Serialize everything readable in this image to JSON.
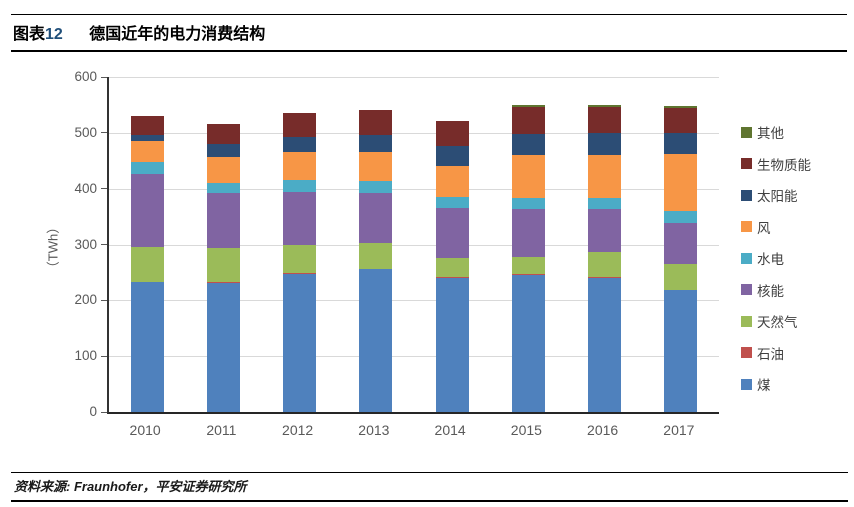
{
  "header": {
    "label_prefix": "图表",
    "label_number": "12",
    "title": "德国近年的电力消费结构"
  },
  "footer": {
    "source": "资料来源: Fraunhofer，平安证券研究所"
  },
  "chart_data": {
    "type": "bar",
    "stacked": true,
    "title": "德国近年的电力消费结构",
    "unit": "TWh",
    "ylabel": "（TWh）",
    "xlabel": "",
    "ylim": [
      0,
      600
    ],
    "yticks": [
      0,
      100,
      200,
      300,
      400,
      500,
      600
    ],
    "grid": true,
    "legend_position": "right",
    "legend_order": "reverse-of-stacking",
    "categories": [
      "2010",
      "2011",
      "2012",
      "2013",
      "2014",
      "2015",
      "2016",
      "2017"
    ],
    "series": [
      {
        "key": "coal",
        "name": "煤",
        "color": "#4F81BD",
        "values": [
          232,
          231,
          248,
          256,
          240,
          246,
          240,
          218
        ]
      },
      {
        "key": "oil",
        "name": "石油",
        "color": "#C0504D",
        "values": [
          1,
          1,
          1,
          1,
          1,
          1,
          1,
          1
        ]
      },
      {
        "key": "natural-gas",
        "name": "天然气",
        "color": "#9BBB59",
        "values": [
          63,
          62,
          50,
          45,
          34,
          30,
          45,
          47
        ]
      },
      {
        "key": "nuclear",
        "name": "核能",
        "color": "#8064A2",
        "values": [
          131,
          99,
          95,
          90,
          90,
          86,
          77,
          73
        ]
      },
      {
        "key": "hydro",
        "name": "水电",
        "color": "#4BACC6",
        "values": [
          21,
          18,
          21,
          21,
          20,
          21,
          21,
          21
        ]
      },
      {
        "key": "wind",
        "name": "风",
        "color": "#F79646",
        "values": [
          37,
          46,
          50,
          52,
          56,
          77,
          77,
          102
        ]
      },
      {
        "key": "solar",
        "name": "太阳能",
        "color": "#2C4D75",
        "values": [
          12,
          23,
          28,
          31,
          35,
          37,
          39,
          37
        ]
      },
      {
        "key": "biomass",
        "name": "生物质能",
        "color": "#772C2A",
        "values": [
          33,
          36,
          42,
          45,
          45,
          48,
          46,
          46
        ]
      },
      {
        "key": "other",
        "name": "其他",
        "color": "#5F7530",
        "values": [
          0,
          0,
          0,
          0,
          0,
          4,
          4,
          4
        ]
      }
    ]
  }
}
